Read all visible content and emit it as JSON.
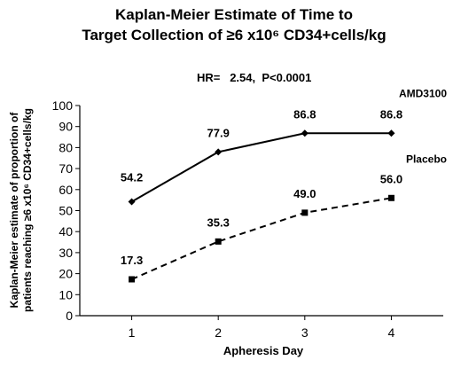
{
  "chart_data": {
    "type": "line",
    "title": "Kaplan-Meier Estimate of Time to Target Collection of ≥6 x10⁶ CD34+cells/kg",
    "title_lines": [
      "Kaplan-Meier Estimate of Time to",
      "Target Collection of ≥6 x10⁶ CD34+cells/kg"
    ],
    "annotation": "HR=   2.54,  P<0.0001",
    "xlabel": "Apheresis Day",
    "ylabel": "Kaplan-Meier estimate of proportion of patients reaching ≥6 x10⁶ CD34+cells/kg",
    "ylabel_lines": [
      "Kaplan-Meier estimate of proportion of",
      "patients reaching ≥6 x10⁶ CD34+cells/kg"
    ],
    "x": [
      1,
      2,
      3,
      4
    ],
    "xlim": [
      0.4,
      4.6
    ],
    "ylim": [
      0,
      100
    ],
    "yticks": [
      0,
      10,
      20,
      30,
      40,
      50,
      60,
      70,
      80,
      90,
      100
    ],
    "grid": false,
    "legend": "inline labels at right",
    "series": [
      {
        "name": "AMD3100",
        "values": [
          54.2,
          77.9,
          86.8,
          86.8
        ],
        "labels": [
          "54.2",
          "77.9",
          "86.8",
          "86.8"
        ],
        "style": "solid",
        "marker": "diamond",
        "color": "#000000"
      },
      {
        "name": "Placebo",
        "values": [
          17.3,
          35.3,
          49.0,
          56.0
        ],
        "labels": [
          "17.3",
          "35.3",
          "49.0",
          "56.0"
        ],
        "style": "dashed",
        "marker": "square",
        "color": "#000000"
      }
    ]
  }
}
